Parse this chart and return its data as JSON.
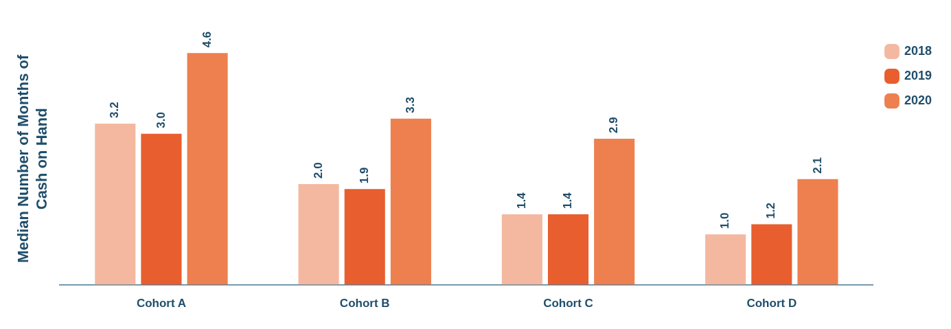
{
  "chart_data": {
    "type": "bar",
    "ylabel": "Median Number of Months of Cash on Hand",
    "categories": [
      "Cohort A",
      "Cohort B",
      "Cohort C",
      "Cohort D"
    ],
    "series": [
      {
        "name": "2018",
        "color": "#f4b8a0",
        "values": [
          3.2,
          2.0,
          1.4,
          1.0
        ],
        "value_labels": [
          "3.2",
          "2.0",
          "1.4",
          "1.0"
        ]
      },
      {
        "name": "2019",
        "color": "#e85e2e",
        "values": [
          3.0,
          1.9,
          1.4,
          1.2
        ],
        "value_labels": [
          "3.0",
          "1.9",
          "1.4",
          "1.2"
        ]
      },
      {
        "name": "2020",
        "color": "#ed804e",
        "values": [
          4.6,
          3.3,
          2.9,
          2.1
        ],
        "value_labels": [
          "4.6",
          "3.3",
          "2.9",
          "2.1"
        ]
      }
    ],
    "grid": false,
    "legend": "top right",
    "tick_labels": "x"
  }
}
